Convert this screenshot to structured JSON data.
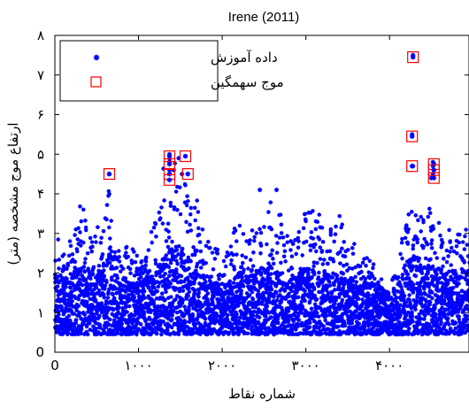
{
  "chart_data": {
    "type": "scatter",
    "title": "Irene (2011)",
    "xlabel": "شماره نقاط",
    "ylabel": "ارتفاع موج مشخصه (متر)",
    "xlim": [
      0,
      4950
    ],
    "ylim": [
      0,
      8
    ],
    "x_ticks": [
      {
        "value": 0,
        "label": "0"
      },
      {
        "value": 1000,
        "label": "۱۰۰۰"
      },
      {
        "value": 2000,
        "label": "۲۰۰۰"
      },
      {
        "value": 3000,
        "label": "۳۰۰۰"
      },
      {
        "value": 4000,
        "label": "۴۰۰۰"
      }
    ],
    "y_ticks": [
      {
        "value": 0,
        "label": "0"
      },
      {
        "value": 1,
        "label": "۱"
      },
      {
        "value": 2,
        "label": "۲"
      },
      {
        "value": 3,
        "label": "۳"
      },
      {
        "value": 4,
        "label": "۴"
      },
      {
        "value": 5,
        "label": "۵"
      },
      {
        "value": 6,
        "label": "۶"
      },
      {
        "value": 7,
        "label": "۷"
      },
      {
        "value": 8,
        "label": "۸"
      }
    ],
    "legend": {
      "position": "top-left",
      "entries": [
        "داده آموزش",
        "موج سهمگین"
      ]
    },
    "series": [
      {
        "name": "داده آموزش",
        "marker": "asterisk",
        "color": "#0000ff",
        "envelope": [
          [
            0,
            1.6,
            2.9
          ],
          [
            100,
            1.5,
            2.8
          ],
          [
            200,
            1.6,
            3.0
          ],
          [
            300,
            1.8,
            4.3
          ],
          [
            400,
            1.7,
            3.0
          ],
          [
            500,
            1.6,
            3.2
          ],
          [
            600,
            1.6,
            3.6
          ],
          [
            650,
            2.3,
            4.5
          ],
          [
            700,
            1.6,
            2.6
          ],
          [
            800,
            1.5,
            2.6
          ],
          [
            900,
            1.4,
            2.8
          ],
          [
            1000,
            1.4,
            2.4
          ],
          [
            1100,
            1.5,
            2.5
          ],
          [
            1200,
            1.6,
            3.6
          ],
          [
            1300,
            1.9,
            4.7
          ],
          [
            1400,
            2.0,
            5.0
          ],
          [
            1500,
            2.0,
            4.4
          ],
          [
            1600,
            1.8,
            4.2
          ],
          [
            1700,
            1.6,
            3.9
          ],
          [
            1800,
            1.5,
            3.2
          ],
          [
            1900,
            1.4,
            2.8
          ],
          [
            2000,
            1.4,
            2.6
          ],
          [
            2100,
            1.5,
            2.9
          ],
          [
            2200,
            1.6,
            3.4
          ],
          [
            2300,
            1.5,
            3.0
          ],
          [
            2400,
            1.6,
            3.2
          ],
          [
            2500,
            1.7,
            3.4
          ],
          [
            2600,
            1.7,
            4.0
          ],
          [
            2700,
            1.6,
            3.5
          ],
          [
            2800,
            1.5,
            2.9
          ],
          [
            2900,
            1.6,
            3.1
          ],
          [
            3000,
            1.7,
            3.6
          ],
          [
            3100,
            1.7,
            3.6
          ],
          [
            3200,
            1.6,
            3.4
          ],
          [
            3300,
            1.5,
            3.1
          ],
          [
            3400,
            1.6,
            3.5
          ],
          [
            3500,
            1.5,
            3.0
          ],
          [
            3600,
            1.5,
            2.7
          ],
          [
            3700,
            1.5,
            2.5
          ],
          [
            3800,
            1.4,
            2.3
          ],
          [
            3900,
            1.3,
            2.0
          ],
          [
            4000,
            1.2,
            1.8
          ],
          [
            4100,
            1.3,
            2.2
          ],
          [
            4200,
            1.8,
            4.0
          ],
          [
            4300,
            1.9,
            3.5
          ],
          [
            4400,
            1.8,
            3.6
          ],
          [
            4500,
            1.7,
            3.9
          ],
          [
            4600,
            1.6,
            3.4
          ],
          [
            4700,
            1.6,
            3.2
          ],
          [
            4800,
            1.6,
            3.0
          ],
          [
            4900,
            1.6,
            3.1
          ],
          [
            4950,
            1.6,
            3.2
          ]
        ],
        "peaks": [
          [
            650,
            4.5
          ],
          [
            1370,
            4.8
          ],
          [
            1370,
            5.0
          ],
          [
            1370,
            4.6
          ],
          [
            1420,
            4.6
          ],
          [
            1480,
            4.9
          ],
          [
            1520,
            4.5
          ],
          [
            2450,
            4.1
          ],
          [
            2650,
            4.1
          ],
          [
            4270,
            5.5
          ],
          [
            4280,
            4.7
          ],
          [
            4280,
            7.5
          ],
          [
            4520,
            4.8
          ],
          [
            4520,
            4.7
          ],
          [
            4520,
            4.5
          ],
          [
            4500,
            4.4
          ]
        ]
      },
      {
        "name": "موج سهمگین",
        "marker": "square",
        "color": "#ff0000",
        "points": [
          {
            "x": 650,
            "y": 4.5
          },
          {
            "x": 1370,
            "y": 4.95
          },
          {
            "x": 1370,
            "y": 4.75
          },
          {
            "x": 1370,
            "y": 4.5
          },
          {
            "x": 1370,
            "y": 4.35
          },
          {
            "x": 1560,
            "y": 4.95
          },
          {
            "x": 1590,
            "y": 4.5
          },
          {
            "x": 4280,
            "y": 7.45
          },
          {
            "x": 4270,
            "y": 5.45
          },
          {
            "x": 4270,
            "y": 4.7
          },
          {
            "x": 4530,
            "y": 4.75
          },
          {
            "x": 4530,
            "y": 4.6
          },
          {
            "x": 4530,
            "y": 4.4
          }
        ]
      }
    ]
  }
}
